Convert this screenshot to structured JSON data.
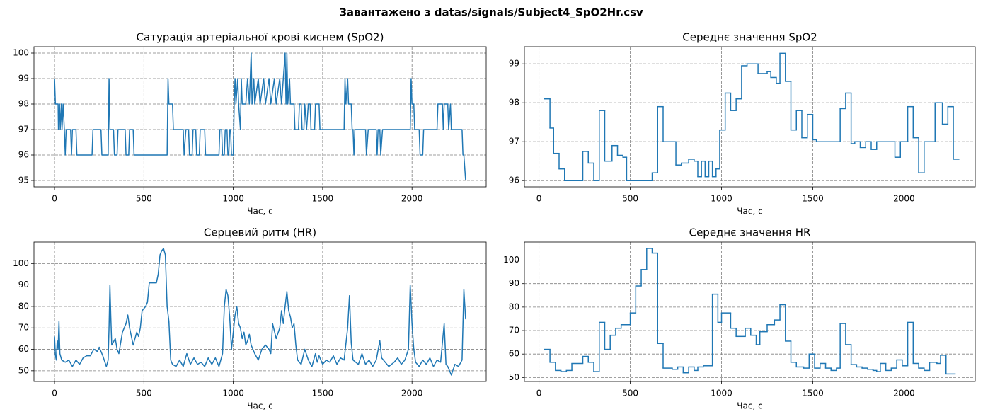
{
  "title": "Завантажено з datas/signals/Subject4_SpO2Hr.csv",
  "chart_data": [
    {
      "type": "line",
      "title": "Сатурація артеріальної крові киснем (SpO2)",
      "xlabel": "Час, с",
      "color": "#1f77b4",
      "drawstyle": "default",
      "grid": true,
      "xlim": [
        -115,
        2415
      ],
      "ylim": [
        94.75,
        100.25
      ],
      "xticks": [
        0,
        500,
        1000,
        1500,
        2000
      ],
      "yticks": [
        95,
        96,
        97,
        98,
        99,
        100
      ],
      "x": [
        0,
        5,
        20,
        22,
        28,
        32,
        38,
        42,
        48,
        55,
        60,
        65,
        90,
        95,
        100,
        120,
        125,
        210,
        215,
        260,
        265,
        300,
        305,
        310,
        330,
        335,
        350,
        355,
        395,
        400,
        415,
        420,
        440,
        445,
        630,
        635,
        640,
        660,
        665,
        720,
        725,
        735,
        750,
        755,
        770,
        775,
        790,
        795,
        810,
        815,
        840,
        845,
        920,
        925,
        935,
        940,
        950,
        955,
        965,
        970,
        975,
        980,
        985,
        990,
        1000,
        1005,
        1010,
        1015,
        1025,
        1030,
        1040,
        1045,
        1050,
        1070,
        1080,
        1090,
        1100,
        1105,
        1115,
        1120,
        1140,
        1150,
        1170,
        1180,
        1200,
        1210,
        1230,
        1240,
        1260,
        1270,
        1290,
        1295,
        1300,
        1305,
        1315,
        1320,
        1340,
        1345,
        1365,
        1370,
        1380,
        1385,
        1395,
        1400,
        1410,
        1420,
        1430,
        1435,
        1455,
        1460,
        1480,
        1485,
        1620,
        1625,
        1630,
        1640,
        1645,
        1660,
        1665,
        1670,
        1675,
        1680,
        1740,
        1745,
        1755,
        1800,
        1805,
        1810,
        1820,
        1825,
        1835,
        1990,
        1995,
        2000,
        2010,
        2015,
        2040,
        2045,
        2060,
        2065,
        2140,
        2145,
        2170,
        2175,
        2180,
        2200,
        2205,
        2215,
        2220,
        2280,
        2285,
        2290,
        2300
      ],
      "values": [
        99,
        98,
        98,
        97,
        98,
        97,
        98,
        97,
        98,
        97,
        96,
        97,
        97,
        96,
        97,
        97,
        96,
        96,
        97,
        97,
        96,
        96,
        99,
        97,
        97,
        96,
        96,
        97,
        97,
        96,
        96,
        97,
        97,
        96,
        96,
        99,
        98,
        98,
        97,
        97,
        96,
        97,
        97,
        96,
        96,
        97,
        97,
        96,
        96,
        97,
        97,
        96,
        96,
        97,
        97,
        96,
        96,
        97,
        97,
        96,
        96,
        97,
        97,
        96,
        96,
        98,
        99,
        98,
        99,
        98,
        97,
        99,
        98,
        98,
        99,
        98,
        100,
        98,
        99,
        98,
        99,
        98,
        99,
        98,
        99,
        98,
        99,
        98,
        99,
        98,
        100,
        98,
        100,
        98,
        99,
        98,
        98,
        97,
        97,
        98,
        98,
        97,
        97,
        98,
        97,
        98,
        98,
        97,
        97,
        98,
        98,
        97,
        97,
        99,
        98,
        99,
        98,
        98,
        97,
        97,
        96,
        97,
        97,
        96,
        97,
        97,
        96,
        97,
        97,
        96,
        97,
        97,
        99,
        98,
        98,
        97,
        97,
        96,
        96,
        97,
        97,
        98,
        98,
        97,
        98,
        98,
        97,
        98,
        97,
        97,
        96,
        96,
        95
      ]
    },
    {
      "type": "line",
      "title": "Середнє значення SpO2",
      "xlabel": "Час, с",
      "color": "#1f77b4",
      "drawstyle": "steps-post",
      "grid": true,
      "xlim": [
        -80,
        2390
      ],
      "ylim": [
        95.84,
        99.44
      ],
      "xticks": [
        0,
        500,
        1000,
        1500,
        2000
      ],
      "yticks": [
        96,
        97,
        98,
        99
      ],
      "x": [
        30,
        60,
        80,
        110,
        140,
        240,
        270,
        300,
        330,
        360,
        400,
        430,
        460,
        480,
        620,
        650,
        680,
        750,
        780,
        820,
        850,
        870,
        890,
        910,
        930,
        950,
        970,
        990,
        1020,
        1050,
        1080,
        1110,
        1140,
        1200,
        1250,
        1270,
        1300,
        1320,
        1350,
        1380,
        1410,
        1440,
        1470,
        1500,
        1520,
        1650,
        1680,
        1710,
        1730,
        1760,
        1790,
        1820,
        1850,
        1950,
        1980,
        2020,
        2050,
        2080,
        2110,
        2170,
        2210,
        2240,
        2270,
        2300
      ],
      "values": [
        98.1,
        97.35,
        96.7,
        96.3,
        96.0,
        96.75,
        96.45,
        96.0,
        97.8,
        96.5,
        96.9,
        96.65,
        96.6,
        96.0,
        96.2,
        97.9,
        97.0,
        96.4,
        96.45,
        96.55,
        96.5,
        96.1,
        96.5,
        96.1,
        96.5,
        96.1,
        96.3,
        97.3,
        98.25,
        97.8,
        98.1,
        98.95,
        99.0,
        98.75,
        98.8,
        98.65,
        98.5,
        99.27,
        98.55,
        97.3,
        97.8,
        97.1,
        97.7,
        97.05,
        97.0,
        97.85,
        98.25,
        96.95,
        97.0,
        96.85,
        97.0,
        96.8,
        97.0,
        96.6,
        97.0,
        97.9,
        97.1,
        96.2,
        97.0,
        98.0,
        97.45,
        97.9,
        96.55,
        96.55
      ]
    },
    {
      "type": "line",
      "title": "Серцевий ритм (HR)",
      "xlabel": "Час, с",
      "color": "#1f77b4",
      "drawstyle": "default",
      "grid": true,
      "xlim": [
        -115,
        2415
      ],
      "ylim": [
        45,
        110
      ],
      "xticks": [
        0,
        500,
        1000,
        1500,
        2000
      ],
      "yticks": [
        50,
        60,
        70,
        80,
        90,
        100
      ],
      "x": [
        0,
        5,
        10,
        15,
        20,
        25,
        30,
        40,
        60,
        80,
        100,
        120,
        140,
        160,
        180,
        200,
        220,
        240,
        250,
        270,
        290,
        300,
        305,
        310,
        315,
        320,
        340,
        350,
        360,
        380,
        400,
        410,
        420,
        440,
        460,
        470,
        480,
        490,
        500,
        510,
        520,
        530,
        550,
        570,
        580,
        590,
        600,
        610,
        620,
        630,
        640,
        650,
        660,
        680,
        700,
        720,
        740,
        760,
        780,
        800,
        820,
        840,
        860,
        880,
        900,
        920,
        940,
        950,
        960,
        970,
        980,
        990,
        1000,
        1010,
        1020,
        1030,
        1040,
        1050,
        1060,
        1070,
        1080,
        1090,
        1100,
        1110,
        1120,
        1140,
        1160,
        1180,
        1200,
        1210,
        1220,
        1240,
        1260,
        1270,
        1280,
        1290,
        1300,
        1310,
        1320,
        1330,
        1340,
        1350,
        1360,
        1380,
        1400,
        1420,
        1440,
        1460,
        1470,
        1480,
        1500,
        1520,
        1540,
        1560,
        1580,
        1600,
        1620,
        1640,
        1650,
        1660,
        1670,
        1700,
        1720,
        1740,
        1760,
        1780,
        1800,
        1820,
        1830,
        1850,
        1870,
        1900,
        1920,
        1940,
        1960,
        1980,
        1990,
        2000,
        2010,
        2020,
        2040,
        2060,
        2080,
        2100,
        2120,
        2140,
        2160,
        2180,
        2190,
        2200,
        2220,
        2240,
        2260,
        2280,
        2290,
        2300
      ],
      "values": [
        66,
        57,
        55,
        64,
        60,
        73,
        58,
        55,
        54,
        55,
        52,
        55,
        53,
        56,
        57,
        57,
        60,
        59,
        61,
        57,
        52,
        55,
        70,
        90,
        75,
        62,
        65,
        60,
        58,
        68,
        72,
        76,
        70,
        62,
        68,
        66,
        70,
        78,
        79,
        80,
        82,
        91,
        91,
        91,
        95,
        104,
        106,
        107,
        104,
        80,
        73,
        55,
        53,
        52,
        55,
        52,
        58,
        53,
        56,
        53,
        54,
        52,
        56,
        53,
        56,
        52,
        58,
        80,
        88,
        85,
        75,
        60,
        68,
        76,
        80,
        72,
        70,
        65,
        68,
        62,
        64,
        67,
        62,
        60,
        58,
        55,
        60,
        62,
        60,
        58,
        72,
        65,
        70,
        78,
        72,
        80,
        87,
        78,
        75,
        70,
        72,
        62,
        55,
        53,
        60,
        55,
        52,
        58,
        54,
        57,
        53,
        55,
        54,
        57,
        53,
        56,
        55,
        70,
        85,
        63,
        55,
        53,
        58,
        53,
        55,
        52,
        55,
        64,
        56,
        54,
        52,
        54,
        56,
        53,
        55,
        60,
        90,
        72,
        60,
        54,
        52,
        55,
        53,
        56,
        52,
        55,
        54,
        72,
        53,
        52,
        48,
        53,
        52,
        55,
        88,
        74
      ]
    },
    {
      "type": "line",
      "title": "Середнє значення HR",
      "xlabel": "Час, с",
      "color": "#1f77b4",
      "drawstyle": "steps-post",
      "grid": true,
      "xlim": [
        -80,
        2390
      ],
      "ylim": [
        48.3,
        107.7
      ],
      "xticks": [
        0,
        500,
        1000,
        1500,
        2000
      ],
      "yticks": [
        50,
        60,
        70,
        80,
        90,
        100
      ],
      "x": [
        30,
        60,
        90,
        120,
        150,
        180,
        240,
        270,
        300,
        330,
        360,
        390,
        420,
        450,
        500,
        530,
        560,
        590,
        620,
        650,
        680,
        730,
        760,
        790,
        820,
        850,
        870,
        900,
        950,
        980,
        1000,
        1050,
        1080,
        1130,
        1160,
        1190,
        1210,
        1250,
        1290,
        1320,
        1350,
        1380,
        1410,
        1450,
        1480,
        1510,
        1540,
        1570,
        1600,
        1630,
        1650,
        1680,
        1710,
        1740,
        1770,
        1800,
        1830,
        1850,
        1870,
        1900,
        1930,
        1960,
        1990,
        2020,
        2050,
        2080,
        2110,
        2140,
        2180,
        2200,
        2230,
        2280
      ],
      "values": [
        62,
        56.5,
        53,
        52.5,
        53,
        56,
        59,
        56.5,
        52.5,
        73.5,
        62,
        68,
        71,
        72.5,
        77.5,
        89,
        96,
        105,
        103,
        64.5,
        54,
        53.5,
        54.5,
        52,
        54.5,
        53,
        54.5,
        55,
        85.5,
        73.5,
        77.5,
        71,
        67.5,
        71,
        68,
        64,
        69.5,
        72.5,
        74.5,
        81,
        65.5,
        56.5,
        54.5,
        54,
        60,
        54,
        56,
        54,
        53,
        54,
        73,
        64,
        55.5,
        54.5,
        54,
        53.5,
        53,
        52.5,
        56,
        53,
        54,
        57.5,
        55,
        73.5,
        56,
        54,
        53,
        56.5,
        56,
        59.5,
        51.5,
        51.5
      ]
    }
  ]
}
